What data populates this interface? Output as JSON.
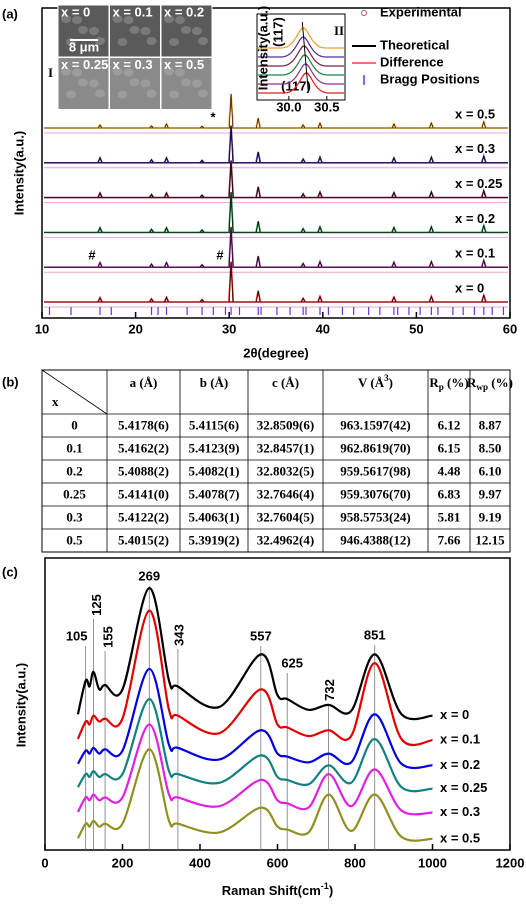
{
  "panel_labels": [
    "(a)",
    "(b)",
    "(c)"
  ],
  "chart_data": [
    {
      "type": "spectrum",
      "xlabel": "2θ(degree)",
      "ylabel": "Intensity(a.u.)",
      "xlim": [
        10,
        60
      ],
      "xticks": [
        10,
        20,
        30,
        40,
        50,
        60
      ],
      "ylim": [
        0,
        100
      ],
      "peaks": [
        16.2,
        21.7,
        23.3,
        27.1,
        30.2,
        33.1,
        37.9,
        39.7,
        47.6,
        51.6,
        57.2
      ],
      "series": [
        {
          "name": "x = 0.5",
          "color": "#f0a030",
          "values": [
            1,
            0.7,
            1.3,
            0.6,
            11,
            3.2,
            1,
            1.6,
            1.3,
            1.6,
            2
          ]
        },
        {
          "name": "x = 0.3",
          "color": "#5030a0",
          "values": [
            1.6,
            1,
            1.6,
            0.8,
            12,
            3.5,
            1.2,
            1.8,
            1.6,
            1.8,
            2.2
          ]
        },
        {
          "name": "x = 0.25",
          "color": "#802040",
          "values": [
            1.5,
            1,
            1.5,
            0.8,
            12,
            3.5,
            1.2,
            1.8,
            1.6,
            1.8,
            2.2
          ]
        },
        {
          "name": "x = 0.2",
          "color": "#208040",
          "values": [
            1.5,
            1,
            1.5,
            0.8,
            13,
            3.6,
            1.2,
            1.8,
            1.6,
            1.8,
            2.2
          ]
        },
        {
          "name": "x = 0.1",
          "color": "#903090",
          "values": [
            1.5,
            1,
            1.5,
            0.8,
            13,
            3.6,
            1.2,
            1.8,
            1.6,
            1.8,
            2.2
          ]
        },
        {
          "name": "x = 0",
          "color": "#e02020",
          "values": [
            1.4,
            1,
            1.5,
            0.8,
            13,
            3.6,
            1.2,
            1.8,
            1.6,
            1.8,
            2.2
          ]
        }
      ],
      "bragg_positions": [
        10.8,
        13.1,
        16.2,
        17.4,
        21.7,
        22.4,
        23.3,
        25.5,
        27.1,
        28.3,
        29.6,
        30.2,
        31.1,
        33.1,
        33.4,
        35.1,
        36.5,
        37.9,
        38.2,
        39.7,
        40.6,
        42.1,
        43.3,
        44.9,
        46.1,
        47.6,
        48.0,
        49.2,
        50.4,
        51.6,
        52.3,
        53.9,
        55.0,
        56.2,
        57.2,
        58.1,
        59.3
      ],
      "bragg_color": "#7030d0",
      "legend": [
        {
          "name": "Experimental",
          "color": "#c05050"
        },
        {
          "name": "Theoretical",
          "color": "#000000"
        },
        {
          "name": "Difference",
          "color": "#e02020"
        },
        {
          "name": "Bragg Positions",
          "color": "#7030d0"
        }
      ],
      "annotations": [
        "(117)",
        "*",
        "#",
        "#"
      ],
      "inset_sem": {
        "label": "I",
        "scale_bar": "8 μm",
        "panels": [
          "x = 0",
          "x = 0.1",
          "x = 0.2",
          "x = 0.25",
          "x = 0.3",
          "x = 0.5"
        ]
      },
      "inset_zoom": {
        "label": "II",
        "ylabel": "Intensity(a.u.)",
        "annotation": "(117)",
        "xlim": [
          29.58,
          30.74
        ],
        "xticks": [
          {
            "value": 30,
            "label": "30.0"
          },
          30.5
        ],
        "peak_positions": [
          30.19,
          30.19,
          30.2,
          30.21,
          30.22,
          30.23
        ]
      }
    },
    {
      "type": "line",
      "xlabel": {
        "text": "Raman Shift(cm",
        "sup": "-1",
        "suffix": ")"
      },
      "ylabel": "Intensity(a.u.)",
      "xlim": [
        0,
        1200
      ],
      "xticks": [
        0,
        200,
        400,
        600,
        800,
        1000,
        1200
      ],
      "ylim": [
        0,
        100
      ],
      "x": [
        85,
        105,
        115,
        125,
        140,
        155,
        200,
        269,
        320,
        343,
        450,
        557,
        600,
        625,
        680,
        732,
        790,
        851,
        920,
        1000
      ],
      "series": [
        {
          "name": "x = 0",
          "color": "#000000",
          "values": [
            46.5,
            58,
            56,
            61,
            55,
            56.5,
            55,
            89.7,
            58,
            56,
            49,
            67,
            53,
            51.7,
            48,
            49.7,
            47.6,
            67,
            46.5,
            46
          ]
        },
        {
          "name": "x = 0.1",
          "color": "#e00000",
          "values": [
            38,
            44,
            43,
            46,
            44,
            45,
            45,
            82,
            48,
            46,
            40,
            55,
            43,
            42,
            39,
            41,
            39,
            64,
            38,
            37.6
          ]
        },
        {
          "name": "x = 0.2",
          "color": "#0000e0",
          "values": [
            29.5,
            34,
            33,
            35,
            33,
            34.5,
            34,
            62,
            36,
            35,
            31,
            41,
            33,
            32,
            30,
            33,
            30,
            46.5,
            29.5,
            29
          ]
        },
        {
          "name": "x = 0.25",
          "color": "#108080",
          "values": [
            21.5,
            26,
            25,
            27,
            25,
            26,
            26,
            51.7,
            27,
            26,
            23,
            32.4,
            25,
            24,
            22.5,
            29,
            23,
            38,
            21.5,
            21
          ]
        },
        {
          "name": "x = 0.3",
          "color": "#e020e0",
          "values": [
            13,
            18,
            17,
            19,
            17,
            18,
            18,
            43,
            19,
            18,
            15,
            24,
            17,
            16,
            14.5,
            26,
            15,
            27.6,
            13.5,
            12.8
          ]
        },
        {
          "name": "x = 0.5",
          "color": "#909020",
          "values": [
            4,
            9,
            8,
            10,
            8,
            9,
            9,
            34.5,
            10,
            9,
            6,
            14.5,
            8,
            7,
            6,
            19,
            6.5,
            19,
            4.5,
            3.8
          ]
        }
      ],
      "peak_labels": [
        105,
        125,
        155,
        269,
        343,
        557,
        625,
        732,
        851
      ]
    }
  ],
  "table": {
    "headers": [
      "x",
      "a (Å)",
      "b (Å)",
      "c (Å)",
      {
        "text": "V (Å",
        "sup": "3",
        "suffix": ")"
      },
      {
        "text": "R",
        "sub": "p",
        "suffix": " (%)"
      },
      {
        "text": "R",
        "sub": "wp",
        "suffix": " (%)"
      }
    ],
    "rows": [
      [
        "0",
        "5.4178(6)",
        "5.4115(6)",
        "32.8509(6)",
        "963.1597(42)",
        "6.12",
        "8.87"
      ],
      [
        "0.1",
        "5.4162(2)",
        "5.4123(9)",
        "32.8457(1)",
        "962.8619(70)",
        "6.15",
        "8.50"
      ],
      [
        "0.2",
        "5.4088(2)",
        "5.4082(1)",
        "32.8032(5)",
        "959.5617(98)",
        "4.48",
        "6.10"
      ],
      [
        "0.25",
        "5.4141(0)",
        "5.4078(7)",
        "32.7646(4)",
        "959.3076(70)",
        "6.83",
        "9.97"
      ],
      [
        "0.3",
        "5.4122(2)",
        "5.4063(1)",
        "32.7604(5)",
        "958.5753(24)",
        "5.81",
        "9.19"
      ],
      [
        "0.5",
        "5.4015(2)",
        "5.3919(2)",
        "32.4962(4)",
        "946.4388(12)",
        "7.66",
        "12.15"
      ]
    ]
  }
}
